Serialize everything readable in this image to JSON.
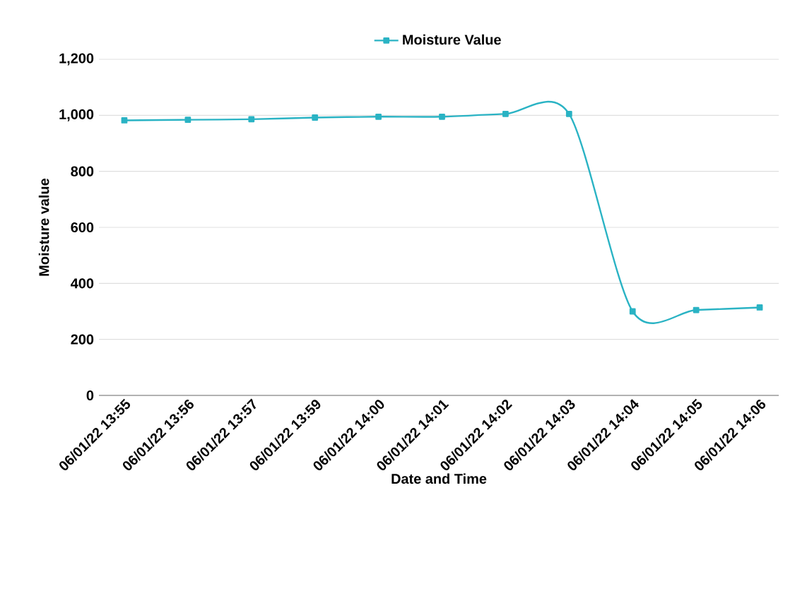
{
  "chart_data": {
    "type": "line",
    "xlabel": "Date and Time",
    "ylabel": "Moisture value",
    "categories": [
      "06/01/22 13:55",
      "06/01/22 13:56",
      "06/01/22 13:57",
      "06/01/22 13:59",
      "06/01/22 14:00",
      "06/01/22 14:01",
      "06/01/22 14:02",
      "06/01/22 14:03",
      "06/01/22 14:04",
      "06/01/22 14:05",
      "06/01/22 14:06"
    ],
    "series": [
      {
        "name": "Moisture Value",
        "color": "#2ab3c4",
        "values": [
          982,
          984,
          986,
          992,
          995,
          995,
          1005,
          1005,
          300,
          305,
          314
        ]
      }
    ],
    "ylim": [
      0,
      1200
    ],
    "yticks": [
      0,
      200,
      400,
      600,
      800,
      {
        "value": 1000,
        "label": "1,000"
      },
      {
        "value": 1200,
        "label": "1,200"
      }
    ],
    "grid": "y",
    "legend": "top",
    "marker": "square",
    "line_style": "solid"
  }
}
